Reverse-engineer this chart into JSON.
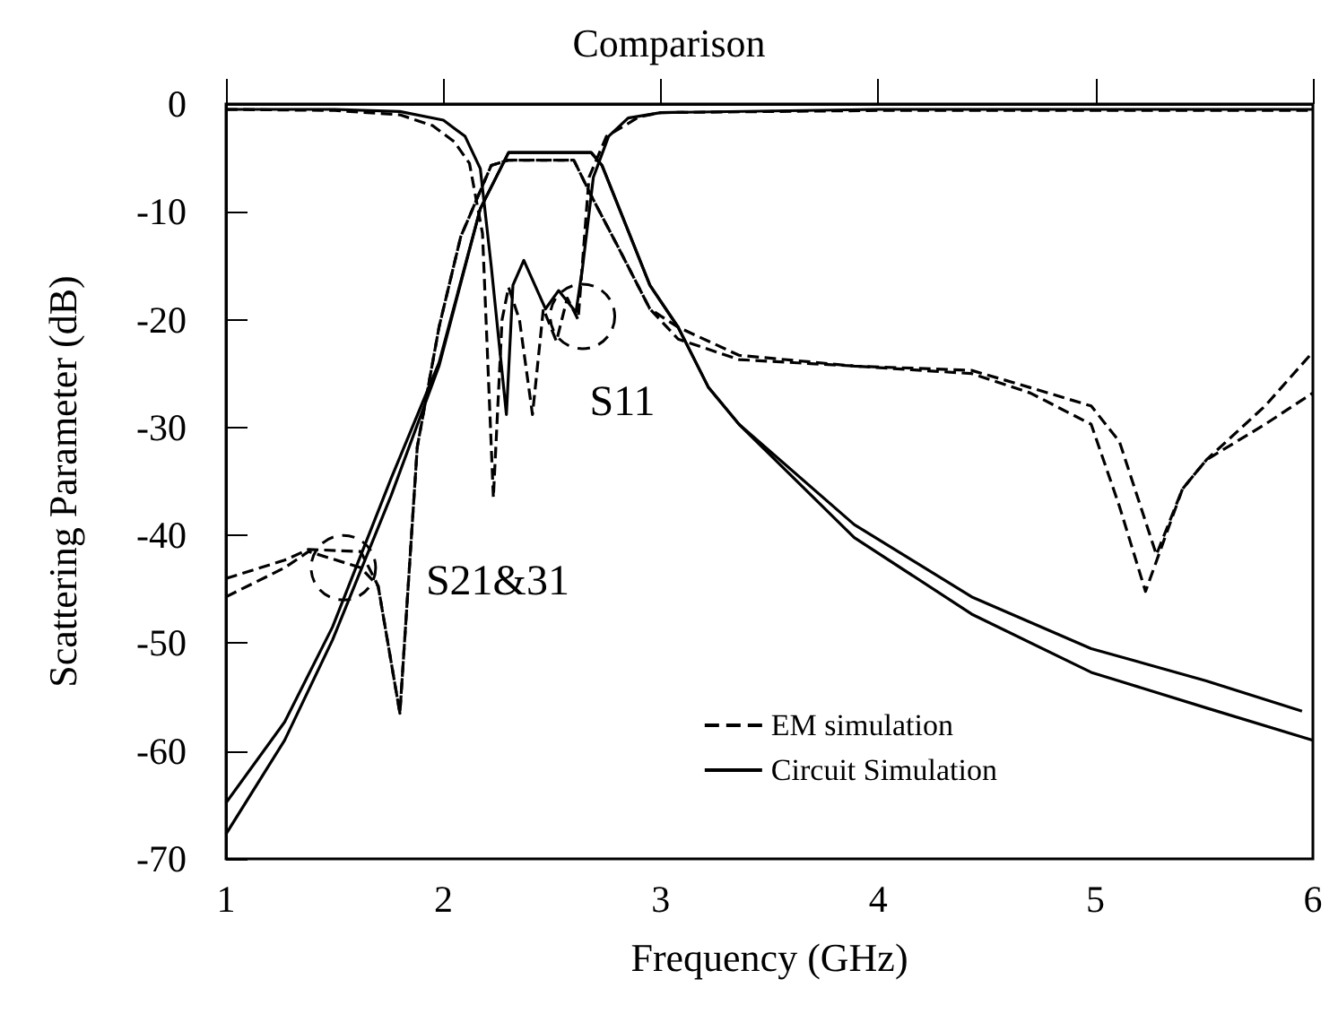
{
  "chart_data": {
    "type": "line",
    "title": "Comparison",
    "xlabel": "Frequency (GHz)",
    "ylabel": "Scattering Parameter (dB)",
    "xlim": [
      1,
      6
    ],
    "xticks": [
      1,
      2,
      3,
      4,
      5,
      6
    ],
    "ylim": [
      -70,
      0
    ],
    "yticks": [
      -70,
      -60,
      -50,
      -40,
      -30,
      -20,
      -10,
      0
    ],
    "grid": false,
    "legend": "bottom right",
    "marker": "none",
    "annotations": [
      {
        "text": "S11",
        "x": 2.64,
        "y": -19.7
      },
      {
        "text": "S21&31",
        "x": 1.54,
        "y": -43
      }
    ],
    "series": [
      {
        "name": "EM simulation",
        "color": "#000000",
        "line_style": "dashed",
        "x": [
          1,
          1.5,
          1.8,
          1.95,
          2.05,
          2.12,
          2.18,
          2.23,
          2.27,
          2.3,
          2.35,
          2.41,
          2.46,
          2.52,
          2.57,
          2.62,
          2.67,
          2.75,
          2.9,
          3,
          4,
          5,
          6
        ],
        "values": [
          -0.5,
          -0.6,
          -1,
          -2,
          -3.5,
          -5.5,
          -12,
          -36.5,
          -20,
          -17,
          -20,
          -28.8,
          -19,
          -22,
          -18,
          -20,
          -6.8,
          -3,
          -1.2,
          -0.8,
          -0.6,
          -0.6,
          -0.6
        ]
      },
      {
        "name": "Circuit Simulation",
        "color": "#000000",
        "line_style": "solid",
        "x": [
          1,
          1.5,
          1.8,
          2,
          2.1,
          2.17,
          2.22,
          2.29,
          2.32,
          2.37,
          2.47,
          2.53,
          2.61,
          2.64,
          2.69,
          2.76,
          2.85,
          3,
          4,
          5,
          6
        ],
        "values": [
          -0.5,
          -0.5,
          -0.7,
          -1.5,
          -3,
          -6,
          -15,
          -28.8,
          -16.8,
          -14.5,
          -19,
          -17.3,
          -19.3,
          -15.2,
          -6.8,
          -3,
          -1.3,
          -0.8,
          -0.5,
          -0.5,
          -0.5
        ]
      },
      {
        "color": "#000000",
        "line_style": "dashed",
        "x": [
          1,
          1.27,
          1.38,
          1.62,
          1.7,
          1.8,
          1.88,
          1.98,
          2.08,
          2.22,
          2.3,
          2.6,
          2.68,
          2.81,
          2.95,
          3.08,
          3.36,
          3.89,
          4.43,
          4.7,
          4.98,
          5.11,
          5.23,
          5.4,
          5.51,
          5.78,
          6
        ],
        "values": [
          -44,
          -42.3,
          -41.3,
          -41.5,
          -44.7,
          -56.5,
          -31.8,
          -20.7,
          -12.3,
          -5.7,
          -5.2,
          -5.2,
          -8.5,
          -13.5,
          -19,
          -21.8,
          -23.7,
          -24.3,
          -25,
          -26.8,
          -29.7,
          -37.3,
          -45.2,
          -35.7,
          -33,
          -29.7,
          -26.8
        ]
      },
      {
        "color": "#000000",
        "line_style": "dashed",
        "x": [
          1,
          1.27,
          1.38,
          1.62,
          1.7,
          1.8,
          1.88,
          1.98,
          2.08,
          2.22,
          2.3,
          2.6,
          2.68,
          2.81,
          2.95,
          3.08,
          3.36,
          3.89,
          4.43,
          4.7,
          4.98,
          5.11,
          5.28,
          5.4,
          5.51,
          5.78,
          6
        ],
        "values": [
          -45.7,
          -43,
          -41.5,
          -43,
          -44.7,
          -56.5,
          -31.8,
          -20.7,
          -12.3,
          -5.7,
          -5.2,
          -5.2,
          -8.5,
          -13.5,
          -19,
          -20.7,
          -23.3,
          -24.3,
          -24.7,
          -26.3,
          -28,
          -31.3,
          -41.8,
          -35.7,
          -33,
          -28,
          -23
        ]
      },
      {
        "color": "#000000",
        "line_style": "solid",
        "x": [
          1,
          1.27,
          1.49,
          1.76,
          1.98,
          2.17,
          2.3,
          2.68,
          2.73,
          2.95,
          3.08,
          3.22,
          3.36,
          3.89,
          4.43,
          4.98,
          5.51,
          5.95
        ],
        "values": [
          -64.8,
          -57.3,
          -48.5,
          -34.7,
          -24,
          -9.7,
          -4.5,
          -4.5,
          -5.7,
          -16.8,
          -20.7,
          -26.3,
          -29.7,
          -39,
          -45.7,
          -50.5,
          -53.5,
          -56.3
        ]
      },
      {
        "color": "#000000",
        "line_style": "solid",
        "x": [
          1,
          1.27,
          1.49,
          1.76,
          1.98,
          2.17,
          2.3,
          2.68,
          2.73,
          2.95,
          3.08,
          3.22,
          3.36,
          3.89,
          4.43,
          4.98,
          5.51,
          6
        ],
        "values": [
          -67.7,
          -59,
          -49.7,
          -36.3,
          -24.3,
          -9.7,
          -4.5,
          -4.5,
          -5.7,
          -16.8,
          -20.7,
          -26.3,
          -29.7,
          -40.2,
          -47.3,
          -52.7,
          -56,
          -59
        ]
      }
    ]
  }
}
